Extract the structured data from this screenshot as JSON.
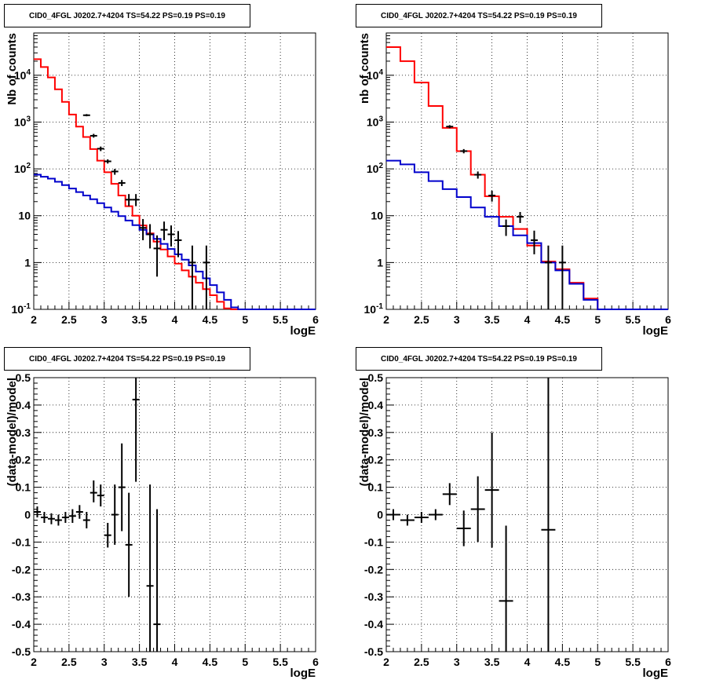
{
  "chart_data": [
    {
      "type": "line",
      "title": "CID0_4FGL J0202.7+4204 TS=54.22 PS=0.19 PS=0.19",
      "xlabel": "logE",
      "ylabel": "Nb of counts",
      "xlim": [
        2,
        6
      ],
      "ylim": [
        0.1,
        80000
      ],
      "yscale": "log",
      "grid": true,
      "x_ticks": [
        "2",
        "2.5",
        "3",
        "3.5",
        "4",
        "4.5",
        "5",
        "5.5",
        "6"
      ],
      "y_ticks": [
        "10-1",
        "1",
        "10",
        "102",
        "103",
        "104"
      ],
      "bin_edges": [
        2.0,
        2.1,
        2.2,
        2.3,
        2.4,
        2.5,
        2.6,
        2.7,
        2.8,
        2.9,
        3.0,
        3.1,
        3.2,
        3.3,
        3.4,
        3.5,
        3.6,
        3.7,
        3.8,
        3.9,
        4.0,
        4.1,
        4.2,
        4.3,
        4.4,
        4.5,
        4.6,
        4.7,
        4.8,
        4.9,
        5.0,
        5.1,
        5.2,
        5.3,
        5.4,
        5.5,
        5.6,
        5.7,
        5.8,
        5.9,
        6.0
      ],
      "series": [
        {
          "color": "#ff0000",
          "kind": "step",
          "values": [
            22000,
            15000,
            9000,
            5000,
            2700,
            1450,
            800,
            480,
            265,
            150,
            85,
            48,
            27,
            16,
            10,
            6.2,
            4.2,
            2.8,
            1.9,
            1.35,
            0.95,
            0.68,
            0.5,
            0.37,
            0.27,
            0.2,
            0.145,
            0.105,
            0.1,
            0.1,
            0.1,
            0.1,
            0.1,
            0.1,
            0.1,
            0.1,
            0.1,
            0.1,
            0.1,
            0.1
          ]
        },
        {
          "color": "#0000cc",
          "kind": "step",
          "values": [
            75,
            68,
            62,
            53,
            45,
            38,
            32,
            27,
            22.5,
            18.5,
            15,
            12.2,
            9.8,
            7.9,
            6.3,
            5.0,
            4.0,
            3.2,
            2.5,
            1.95,
            1.5,
            1.15,
            0.87,
            0.64,
            0.46,
            0.33,
            0.23,
            0.16,
            0.11,
            0.1,
            0.1,
            0.1,
            0.1,
            0.1,
            0.1,
            0.1,
            0.1,
            0.1,
            0.1,
            0.1
          ]
        },
        {
          "color": "#000000",
          "kind": "points",
          "x": [
            2.75,
            2.85,
            2.95,
            3.05,
            3.15,
            3.25,
            3.35,
            3.45,
            3.55,
            3.65,
            3.75,
            3.85,
            3.95,
            4.05,
            4.25,
            4.45
          ],
          "y": [
            1400,
            510,
            270,
            145,
            88,
            50,
            22,
            22,
            5.5,
            4,
            2,
            5,
            4,
            3,
            1,
            1
          ],
          "ylow": [
            1330,
            465,
            240,
            130,
            75,
            43,
            16,
            16,
            3,
            2,
            0.5,
            3,
            2.2,
            1.3,
            0.1,
            0.1
          ],
          "yhigh": [
            1480,
            560,
            300,
            160,
            100,
            58,
            29,
            29,
            8.5,
            6.6,
            3.8,
            7.5,
            6.2,
            4.7,
            2.3,
            2.3
          ]
        }
      ]
    },
    {
      "type": "line",
      "title": "CID0_4FGL J0202.7+4204 TS=54.22 PS=0.19 PS=0.19",
      "xlabel": "logE",
      "ylabel": "nb of counts",
      "xlim": [
        2,
        6
      ],
      "ylim": [
        0.1,
        80000
      ],
      "yscale": "log",
      "grid": true,
      "x_ticks": [
        "2",
        "2.5",
        "3",
        "3.5",
        "4",
        "4.5",
        "5",
        "5.5",
        "6"
      ],
      "y_ticks": [
        "10-1",
        "1",
        "10",
        "102",
        "103",
        "104"
      ],
      "bin_edges": [
        2.0,
        2.2,
        2.4,
        2.6,
        2.8,
        3.0,
        3.2,
        3.4,
        3.6,
        3.8,
        4.0,
        4.2,
        4.4,
        4.6,
        4.8,
        5.0,
        5.2,
        5.4,
        5.6,
        5.8,
        6.0
      ],
      "series": [
        {
          "color": "#ff0000",
          "kind": "step",
          "values": [
            40000,
            20000,
            7000,
            2200,
            750,
            240,
            75,
            26,
            9.5,
            5.2,
            2.3,
            1.05,
            0.72,
            0.37,
            0.17,
            0.1,
            0.1,
            0.1,
            0.1,
            0.1
          ]
        },
        {
          "color": "#0000cc",
          "kind": "step",
          "values": [
            150,
            125,
            85,
            55,
            37,
            25,
            15,
            9.5,
            6,
            3.8,
            2.6,
            1.0,
            0.68,
            0.35,
            0.16,
            0.1,
            0.1,
            0.1,
            0.1,
            0.1
          ]
        },
        {
          "color": "#000000",
          "kind": "points",
          "x": [
            2.9,
            3.1,
            3.3,
            3.5,
            3.7,
            3.9,
            4.1,
            4.3,
            4.5
          ],
          "y": [
            800,
            240,
            75,
            27,
            6,
            9.5,
            3,
            1,
            1
          ],
          "ylow": [
            740,
            215,
            62,
            20,
            3.7,
            7,
            1.5,
            0.1,
            0.1
          ],
          "yhigh": [
            860,
            265,
            88,
            34,
            8.3,
            12,
            4.8,
            2.3,
            2.3
          ]
        }
      ]
    },
    {
      "type": "scatter",
      "title": "CID0_4FGL J0202.7+4204 TS=54.22 PS=0.19 PS=0.19",
      "xlabel": "logE",
      "ylabel": "(data-model)/model",
      "xlim": [
        2,
        6
      ],
      "ylim": [
        -0.5,
        0.5
      ],
      "grid": true,
      "x_ticks": [
        "2",
        "2.5",
        "3",
        "3.5",
        "4",
        "4.5",
        "5",
        "5.5",
        "6"
      ],
      "y_ticks": [
        "-0.5",
        "-0.4",
        "-0.3",
        "-0.2",
        "-0.1",
        "0",
        "0.1",
        "0.2",
        "0.3",
        "0.4",
        "0.5"
      ],
      "xerr": 0.05,
      "series": [
        {
          "color": "#000000",
          "x": [
            2.05,
            2.15,
            2.25,
            2.35,
            2.45,
            2.55,
            2.65,
            2.75,
            2.85,
            2.95,
            3.05,
            3.15,
            3.25,
            3.35,
            3.45,
            3.65,
            3.75
          ],
          "y": [
            0.01,
            -0.01,
            -0.015,
            -0.02,
            -0.01,
            -0.005,
            0.01,
            -0.02,
            0.08,
            0.07,
            -0.075,
            0.0,
            0.1,
            -0.11,
            0.42,
            -0.26,
            -0.4
          ],
          "ylow": [
            -0.01,
            -0.03,
            -0.035,
            -0.04,
            -0.03,
            -0.03,
            -0.015,
            -0.05,
            0.045,
            0.03,
            -0.12,
            -0.11,
            -0.06,
            -0.3,
            0.12,
            -0.55,
            -0.55
          ],
          "yhigh": [
            0.03,
            0.01,
            0.005,
            0.0,
            0.01,
            0.02,
            0.035,
            0.01,
            0.125,
            0.11,
            -0.03,
            0.11,
            0.26,
            0.08,
            0.5,
            0.11,
            0.02
          ]
        }
      ]
    },
    {
      "type": "scatter",
      "title": "CID0_4FGL J0202.7+4204 TS=54.22 PS=0.19 PS=0.19",
      "xlabel": "logE",
      "ylabel": "(data-model)/model",
      "xlim": [
        2,
        6
      ],
      "ylim": [
        -0.5,
        0.5
      ],
      "grid": true,
      "x_ticks": [
        "2",
        "2.5",
        "3",
        "3.5",
        "4",
        "4.5",
        "5",
        "5.5",
        "6"
      ],
      "y_ticks": [
        "-0.5",
        "-0.4",
        "-0.3",
        "-0.2",
        "-0.1",
        "0",
        "0.1",
        "0.2",
        "0.3",
        "0.4",
        "0.5"
      ],
      "xerr": 0.1,
      "series": [
        {
          "color": "#000000",
          "x": [
            2.1,
            2.3,
            2.5,
            2.7,
            2.9,
            3.1,
            3.3,
            3.5,
            3.7,
            4.3
          ],
          "y": [
            0.0,
            -0.02,
            -0.01,
            0.0,
            0.075,
            -0.05,
            0.02,
            0.09,
            -0.315,
            -0.055
          ],
          "ylow": [
            -0.02,
            -0.04,
            -0.03,
            -0.02,
            0.035,
            -0.115,
            -0.1,
            -0.12,
            -0.5,
            -0.5
          ],
          "yhigh": [
            0.02,
            0.0,
            0.01,
            0.02,
            0.115,
            0.015,
            0.14,
            0.3,
            -0.04,
            0.5
          ]
        }
      ]
    }
  ]
}
